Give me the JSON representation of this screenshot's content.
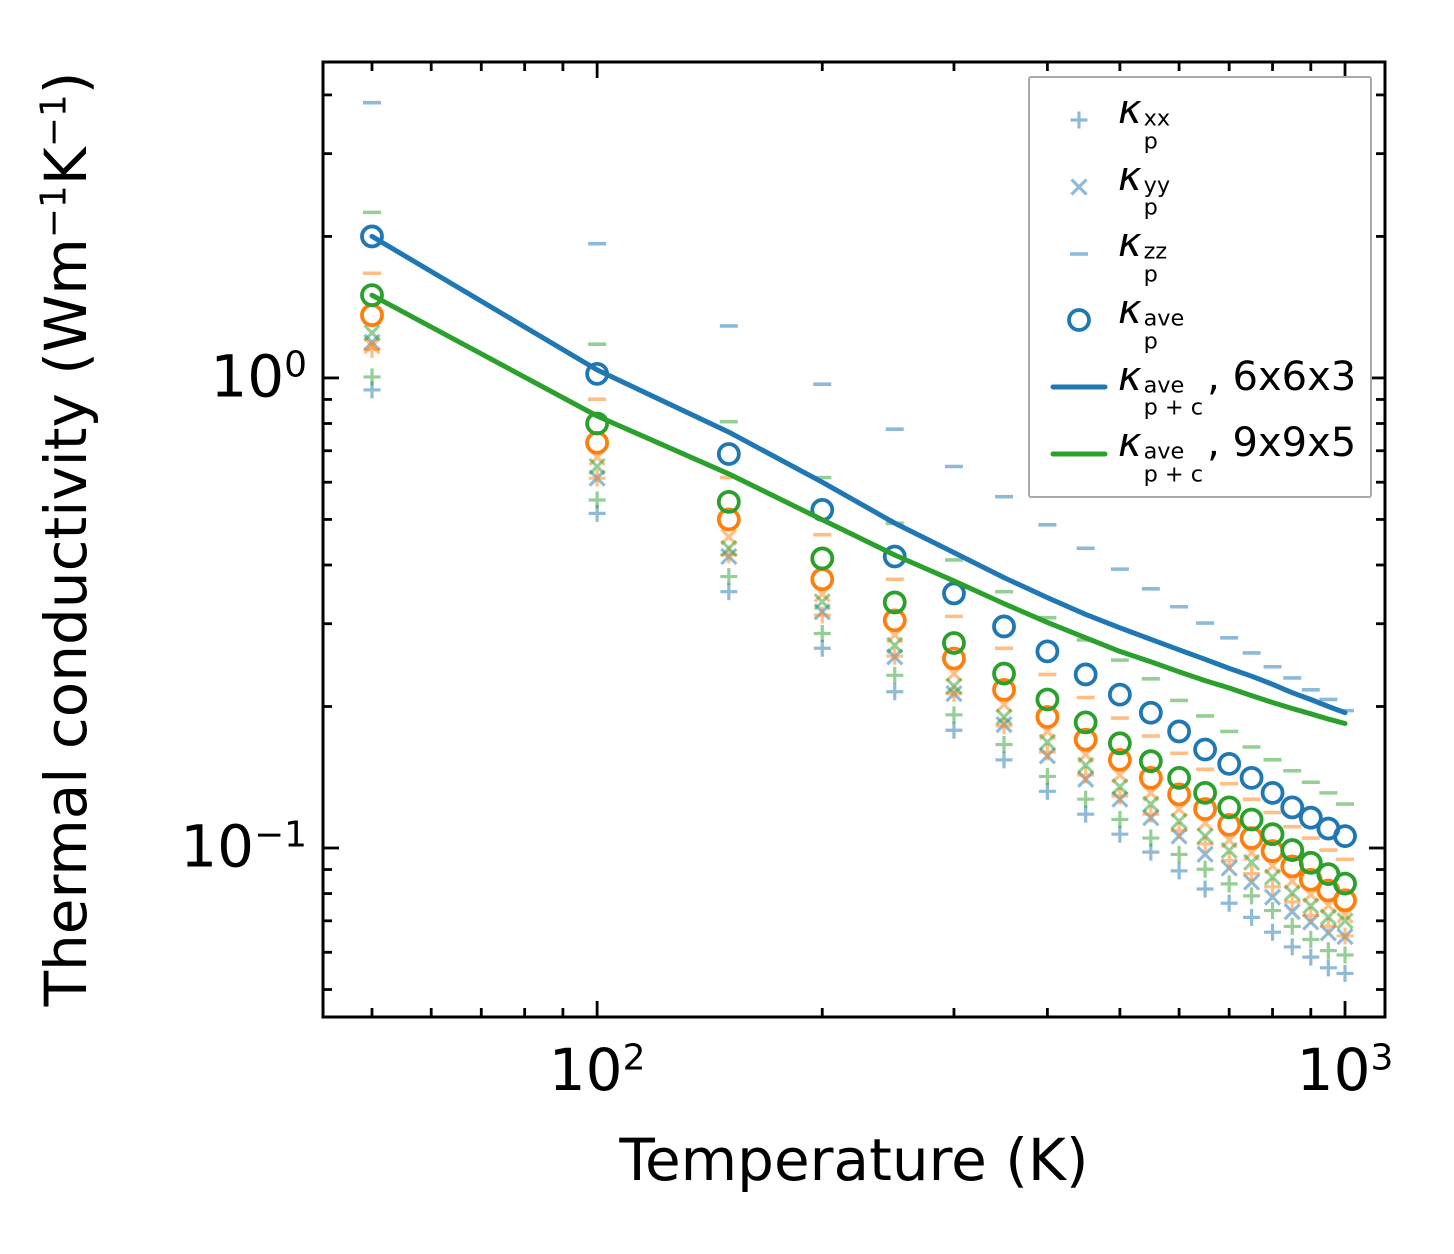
{
  "figure": {
    "background": "#ffffff"
  },
  "colors": {
    "blue": "#1f77b4",
    "orange": "#ff7f0e",
    "green": "#2ca02c",
    "light_blue": "#8fbbd9",
    "light_orange": "#ffbf86",
    "light_green": "#95cf95",
    "spine": "#000000",
    "legend_border": "#a9a9a9"
  },
  "axes": {
    "xlabel": "Temperature (K)",
    "ylabel_parts": [
      "Thermal conductivity (Wm",
      "−1",
      "K",
      "−1",
      ")"
    ],
    "x_ticks": [
      {
        "base": "10",
        "exp": "2",
        "value": 100
      },
      {
        "base": "10",
        "exp": "3",
        "value": 1000
      }
    ],
    "y_ticks": [
      {
        "base": "10",
        "exp": "0",
        "value": 1
      },
      {
        "base": "10",
        "exp": "−1",
        "value": 0.1
      }
    ]
  },
  "legend": {
    "items": [
      {
        "marker": "plus",
        "color": "#1f77b4",
        "opacity": 0.5,
        "kappa": "κ",
        "sup": "xx",
        "sub": "p",
        "suffix": ""
      },
      {
        "marker": "cross",
        "color": "#1f77b4",
        "opacity": 0.5,
        "kappa": "κ",
        "sup": "yy",
        "sub": "p",
        "suffix": ""
      },
      {
        "marker": "dash",
        "color": "#1f77b4",
        "opacity": 0.5,
        "kappa": "κ",
        "sup": "zz",
        "sub": "p",
        "suffix": ""
      },
      {
        "marker": "circle",
        "color": "#1f77b4",
        "opacity": 1,
        "kappa": "κ",
        "sup": "ave",
        "sub": "p",
        "suffix": ""
      },
      {
        "marker": "line",
        "color": "#1f77b4",
        "opacity": 1,
        "kappa": "κ",
        "sup": "ave",
        "sub": "p + c",
        "suffix": ", 6x6x3"
      },
      {
        "marker": "line",
        "color": "#2ca02c",
        "opacity": 1,
        "kappa": "κ",
        "sup": "ave",
        "sub": "p + c",
        "suffix": ", 9x9x5"
      }
    ]
  },
  "chart_data": {
    "type": "scatter",
    "title": "",
    "xlabel": "Temperature (K)",
    "ylabel": "Thermal conductivity (Wm−1K−1)",
    "x_scale": "log",
    "y_scale": "log",
    "xlim": [
      43.0,
      1131
    ],
    "ylim": [
      0.0437,
      4.7
    ],
    "grid": false,
    "legend_position": "upper right",
    "x_major_ticks": [
      100,
      1000
    ],
    "x_minor_ticks": [
      50,
      60,
      70,
      80,
      90,
      200,
      300,
      400,
      500,
      600,
      700,
      800,
      900
    ],
    "y_major_ticks": [
      1,
      0.1
    ],
    "y_minor_ticks": [
      4,
      3,
      2,
      0.9,
      0.8,
      0.7,
      0.6,
      0.5,
      0.4,
      0.3,
      0.2,
      0.09,
      0.08,
      0.07,
      0.06,
      0.05
    ],
    "x": [
      50,
      100,
      150,
      200,
      250,
      300,
      350,
      400,
      450,
      500,
      550,
      600,
      650,
      700,
      750,
      800,
      850,
      900,
      950,
      1000
    ],
    "series": [
      {
        "name": "kp-xx-blue",
        "kind": "scatter",
        "marker": "plus",
        "color": "#1f77b4",
        "opacity": 0.5,
        "values": [
          0.943,
          0.515,
          0.351,
          0.266,
          0.215,
          0.178,
          0.154,
          0.132,
          0.118,
          0.107,
          0.098,
          0.0894,
          0.0818,
          0.0763,
          0.0712,
          0.0662,
          0.0616,
          0.0586,
          0.0556,
          0.0541
        ]
      },
      {
        "name": "kp-yy-blue",
        "kind": "scatter",
        "marker": "cross",
        "color": "#1f77b4",
        "opacity": 0.5,
        "values": [
          1.19,
          0.612,
          0.417,
          0.318,
          0.255,
          0.213,
          0.183,
          0.157,
          0.14,
          0.127,
          0.116,
          0.106,
          0.097,
          0.0906,
          0.0846,
          0.0786,
          0.0732,
          0.0696,
          0.066,
          0.0648
        ]
      },
      {
        "name": "kp-zz-blue",
        "kind": "scatter",
        "marker": "dash",
        "color": "#1f77b4",
        "opacity": 0.5,
        "values": [
          3.85,
          1.93,
          1.29,
          0.97,
          0.778,
          0.648,
          0.559,
          0.487,
          0.434,
          0.392,
          0.356,
          0.326,
          0.301,
          0.28,
          0.26,
          0.243,
          0.23,
          0.217,
          0.207,
          0.196
        ]
      },
      {
        "name": "kp-xx-orange",
        "kind": "scatter",
        "marker": "plus",
        "color": "#ff7f0e",
        "opacity": 0.5,
        "values": [
          1.15,
          0.612,
          0.42,
          0.313,
          0.256,
          0.213,
          0.182,
          0.16,
          0.143,
          0.129,
          0.118,
          0.109,
          0.102,
          0.0941,
          0.0882,
          0.0827,
          0.0768,
          0.0719,
          0.0682,
          0.065
        ]
      },
      {
        "name": "kp-yy-orange",
        "kind": "scatter",
        "marker": "cross",
        "color": "#ff7f0e",
        "opacity": 0.5,
        "values": [
          1.17,
          0.678,
          0.459,
          0.347,
          0.284,
          0.235,
          0.202,
          0.177,
          0.158,
          0.143,
          0.131,
          0.121,
          0.113,
          0.104,
          0.0977,
          0.0916,
          0.085,
          0.0796,
          0.0755,
          0.072
        ]
      },
      {
        "name": "kp-zz-orange",
        "kind": "scatter",
        "marker": "dash",
        "color": "#ff7f0e",
        "opacity": 0.5,
        "values": [
          1.67,
          0.901,
          0.614,
          0.464,
          0.373,
          0.311,
          0.266,
          0.234,
          0.209,
          0.189,
          0.173,
          0.159,
          0.147,
          0.137,
          0.127,
          0.119,
          0.111,
          0.105,
          0.099,
          0.0946
        ]
      },
      {
        "name": "kp-xx-green",
        "kind": "scatter",
        "marker": "plus",
        "color": "#2ca02c",
        "opacity": 0.5,
        "values": [
          1.005,
          0.55,
          0.378,
          0.286,
          0.233,
          0.192,
          0.166,
          0.142,
          0.127,
          0.115,
          0.105,
          0.0969,
          0.0901,
          0.0839,
          0.0791,
          0.0736,
          0.0681,
          0.0639,
          0.0605,
          0.0592
        ]
      },
      {
        "name": "kp-yy-green",
        "kind": "scatter",
        "marker": "cross",
        "color": "#2ca02c",
        "opacity": 0.5,
        "values": [
          1.247,
          0.648,
          0.434,
          0.334,
          0.27,
          0.221,
          0.19,
          0.168,
          0.15,
          0.135,
          0.124,
          0.114,
          0.106,
          0.0988,
          0.0932,
          0.0867,
          0.0802,
          0.0753,
          0.0713,
          0.07
        ]
      },
      {
        "name": "kp-zz-green",
        "kind": "scatter",
        "marker": "dash",
        "color": "#2ca02c",
        "opacity": 0.5,
        "values": [
          2.25,
          1.18,
          0.807,
          0.614,
          0.491,
          0.41,
          0.351,
          0.309,
          0.277,
          0.251,
          0.229,
          0.206,
          0.191,
          0.177,
          0.164,
          0.154,
          0.146,
          0.138,
          0.131,
          0.124
        ]
      },
      {
        "name": "kp-ave-orange",
        "kind": "scatter",
        "marker": "circle",
        "color": "#ff7f0e",
        "opacity": 1,
        "values": [
          1.36,
          0.728,
          0.5,
          0.373,
          0.305,
          0.253,
          0.217,
          0.19,
          0.17,
          0.154,
          0.141,
          0.13,
          0.121,
          0.112,
          0.105,
          0.0985,
          0.0914,
          0.0856,
          0.0812,
          0.0774
        ]
      },
      {
        "name": "kp-ave-green",
        "kind": "scatter",
        "marker": "circle",
        "color": "#2ca02c",
        "opacity": 1,
        "values": [
          1.5,
          0.8,
          0.545,
          0.413,
          0.333,
          0.273,
          0.235,
          0.207,
          0.185,
          0.167,
          0.153,
          0.141,
          0.131,
          0.122,
          0.115,
          0.107,
          0.099,
          0.093,
          0.088,
          0.084
        ]
      },
      {
        "name": "kp-ave-blue",
        "kind": "scatter",
        "marker": "circle",
        "color": "#1f77b4",
        "opacity": 1,
        "values": [
          2.0,
          1.02,
          0.689,
          0.524,
          0.417,
          0.348,
          0.296,
          0.262,
          0.234,
          0.212,
          0.194,
          0.177,
          0.162,
          0.151,
          0.141,
          0.131,
          0.122,
          0.116,
          0.11,
          0.106
        ]
      },
      {
        "name": "kpc-ave-6x6x3",
        "kind": "line",
        "marker": "line",
        "color": "#1f77b4",
        "opacity": 1,
        "values": [
          2.0,
          1.04,
          0.767,
          0.6,
          0.491,
          0.425,
          0.376,
          0.341,
          0.314,
          0.294,
          0.278,
          0.264,
          0.252,
          0.241,
          0.232,
          0.223,
          0.214,
          0.207,
          0.2,
          0.194
        ]
      },
      {
        "name": "kpc-ave-9x9x5",
        "kind": "line",
        "marker": "line",
        "color": "#2ca02c",
        "opacity": 1,
        "values": [
          1.5,
          0.83,
          0.625,
          0.499,
          0.42,
          0.37,
          0.331,
          0.302,
          0.28,
          0.262,
          0.249,
          0.237,
          0.227,
          0.219,
          0.211,
          0.204,
          0.198,
          0.193,
          0.188,
          0.184
        ]
      }
    ]
  }
}
